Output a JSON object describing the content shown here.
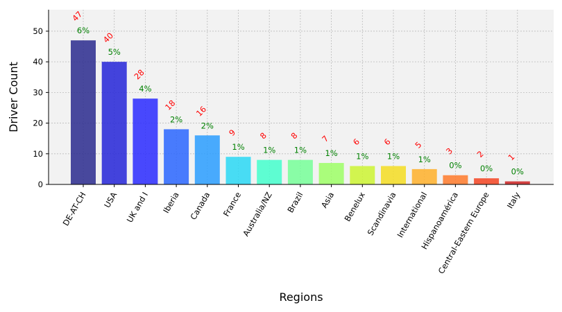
{
  "chart_data": {
    "type": "bar",
    "xlabel": "Regions",
    "ylabel": "Driver Count",
    "ylim": [
      0,
      57
    ],
    "yticks": [
      0,
      10,
      20,
      30,
      40,
      50
    ],
    "grid": true,
    "categories": [
      "DE-AT-CH",
      "USA",
      "UK and I",
      "Iberia",
      "Canada",
      "France",
      "Australia/NZ",
      "Brazil",
      "Asia",
      "Benelux",
      "Scandinavia",
      "International",
      "Hispanoamérica",
      "Central-Eastern Europe",
      "Italy"
    ],
    "values": [
      47,
      40,
      28,
      18,
      16,
      9,
      8,
      8,
      7,
      6,
      6,
      5,
      3,
      2,
      1
    ],
    "percent_labels": [
      "6%",
      "5%",
      "4%",
      "2%",
      "2%",
      "1%",
      "1%",
      "1%",
      "1%",
      "1%",
      "1%",
      "1%",
      "0%",
      "0%",
      "0%"
    ],
    "value_labels": [
      "47",
      "40",
      "28",
      "18",
      "16",
      "9",
      "8",
      "8",
      "7",
      "6",
      "6",
      "5",
      "3",
      "2",
      "1"
    ],
    "colors": [
      "#2a2a8e",
      "#2424d8",
      "#2a2aff",
      "#2a66ff",
      "#2a9eff",
      "#2ad8f4",
      "#44ffcc",
      "#77ff99",
      "#9eff66",
      "#ccf433",
      "#f4dd22",
      "#ffb02a",
      "#ff7a2a",
      "#f44422",
      "#cc2222"
    ],
    "value_label_color": "#ff0000",
    "percent_label_color": "#008000",
    "plot_background": "#f2f2f2"
  }
}
